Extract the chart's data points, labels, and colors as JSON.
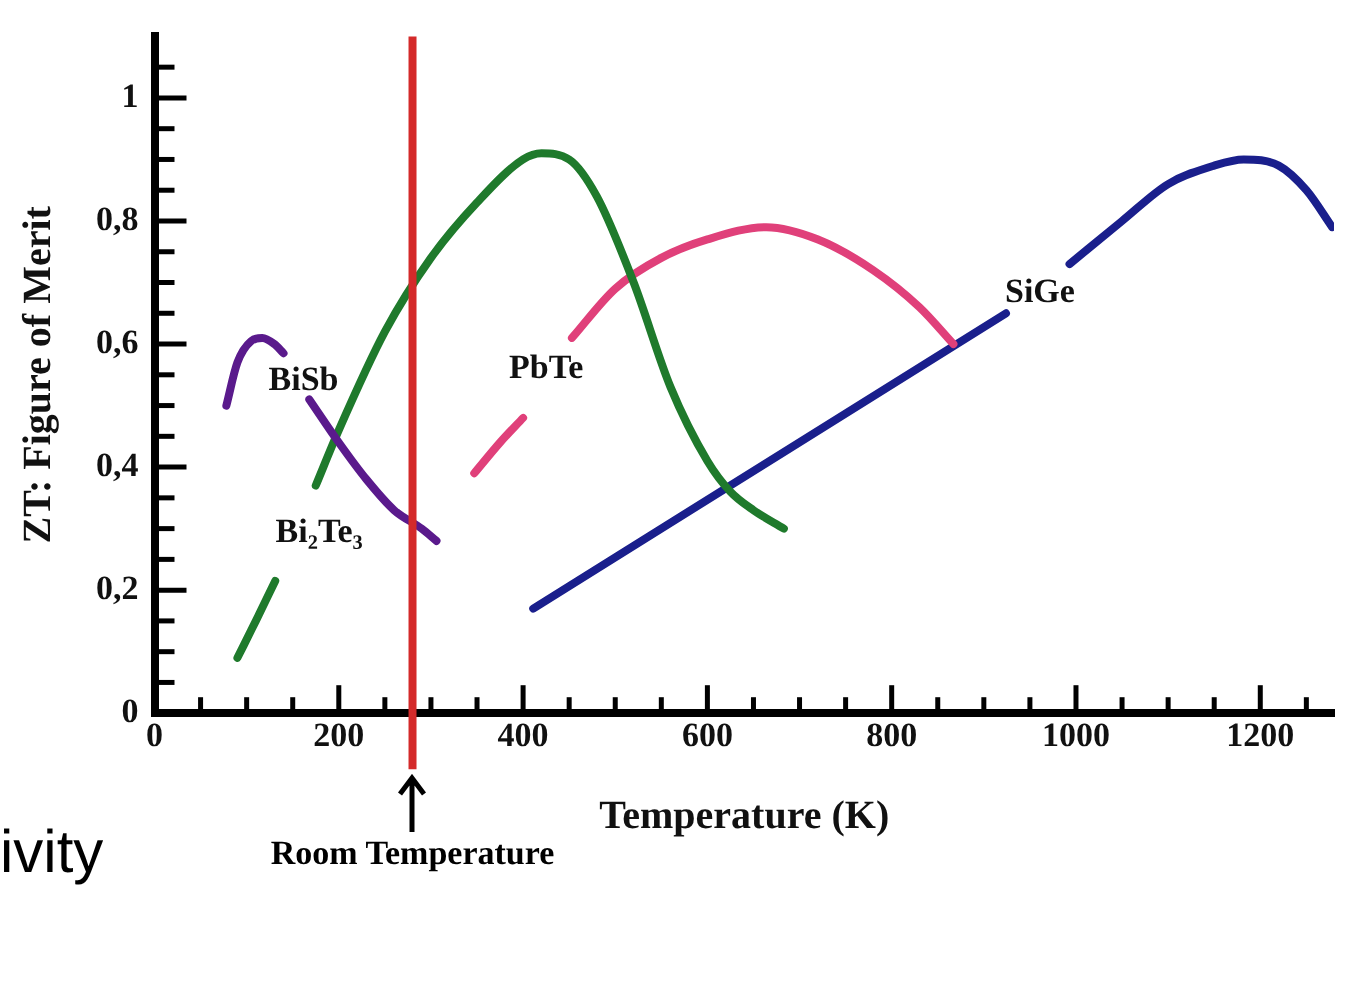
{
  "chart_data": {
    "type": "line",
    "xlabel": "Temperature (K)",
    "ylabel": "ZT: Figure of Merit",
    "xlim": [
      0,
      1280
    ],
    "ylim": [
      0,
      1.1
    ],
    "xticks": [
      0,
      {
        "value": 50,
        "label": null
      },
      {
        "value": 100,
        "label": null
      },
      {
        "value": 150,
        "label": null
      },
      200,
      {
        "value": 250,
        "label": null
      },
      {
        "value": 300,
        "label": null
      },
      {
        "value": 350,
        "label": null
      },
      400,
      {
        "value": 450,
        "label": null
      },
      {
        "value": 500,
        "label": null
      },
      {
        "value": 550,
        "label": null
      },
      600,
      {
        "value": 650,
        "label": null
      },
      {
        "value": 700,
        "label": null
      },
      {
        "value": 750,
        "label": null
      },
      800,
      {
        "value": 850,
        "label": null
      },
      {
        "value": 900,
        "label": null
      },
      {
        "value": 950,
        "label": null
      },
      1000,
      {
        "value": 1050,
        "label": null
      },
      {
        "value": 1100,
        "label": null
      },
      {
        "value": 1150,
        "label": null
      },
      1200,
      {
        "value": 1250,
        "label": null
      }
    ],
    "yticks": [
      0,
      {
        "value": 0.05,
        "label": null
      },
      {
        "value": 0.1,
        "label": null
      },
      {
        "value": 0.15,
        "label": null
      },
      {
        "value": 0.2,
        "label": "0,2"
      },
      {
        "value": 0.25,
        "label": null
      },
      {
        "value": 0.3,
        "label": null
      },
      {
        "value": 0.35,
        "label": null
      },
      {
        "value": 0.4,
        "label": "0,4"
      },
      {
        "value": 0.45,
        "label": null
      },
      {
        "value": 0.5,
        "label": null
      },
      {
        "value": 0.55,
        "label": null
      },
      {
        "value": 0.6,
        "label": "0,6"
      },
      {
        "value": 0.65,
        "label": null
      },
      {
        "value": 0.7,
        "label": null
      },
      {
        "value": 0.75,
        "label": null
      },
      {
        "value": 0.8,
        "label": "0,8"
      },
      {
        "value": 0.85,
        "label": null
      },
      {
        "value": 0.9,
        "label": null
      },
      {
        "value": 0.95,
        "label": null
      },
      1,
      {
        "value": 1.05,
        "label": null
      }
    ],
    "grid": false,
    "legend": false,
    "marker": "none",
    "line_style": "solid",
    "series": [
      {
        "name": "BiSb",
        "color": "#5a1a8c",
        "x": [
          78,
          90,
          105,
          117,
          130,
          140,
          155,
          168,
          200,
          230,
          260,
          290,
          306
        ],
        "values": [
          0.5,
          0.57,
          0.605,
          0.61,
          0.6,
          0.585,
          null,
          0.51,
          0.44,
          0.38,
          0.33,
          0.3,
          0.28
        ]
      },
      {
        "name": "Bi₂Te₃",
        "color": "#1f7a2c",
        "x": [
          90,
          110,
          131,
          150,
          175,
          200,
          250,
          300,
          350,
          400,
          420,
          450,
          480,
          520,
          560,
          600,
          625,
          650,
          683
        ],
        "values": [
          0.09,
          0.15,
          0.215,
          null,
          0.37,
          0.46,
          0.62,
          0.74,
          0.83,
          0.9,
          0.91,
          0.9,
          0.84,
          0.7,
          0.53,
          0.41,
          0.36,
          0.33,
          0.3
        ]
      },
      {
        "name": "PbTe",
        "color": "#e0407a",
        "x": [
          347,
          375,
          400,
          425,
          453,
          500,
          550,
          600,
          664,
          720,
          780,
          830,
          867
        ],
        "values": [
          0.39,
          0.44,
          0.48,
          null,
          0.61,
          0.69,
          0.74,
          0.77,
          0.79,
          0.77,
          0.72,
          0.66,
          0.6
        ]
      },
      {
        "name": "SiGe",
        "color": "#1a1f8c",
        "x": [
          411,
          924,
          960,
          993,
          1050,
          1100,
          1150,
          1182,
          1220,
          1250,
          1278
        ],
        "values": [
          0.17,
          0.65,
          null,
          0.73,
          0.8,
          0.86,
          0.89,
          0.9,
          0.89,
          0.85,
          0.79
        ]
      }
    ],
    "ref_lines": [
      {
        "axis": "x",
        "value": 280,
        "label": "Room Temperature",
        "color": "#d42a2a"
      }
    ],
    "annotations": [
      "ivity"
    ]
  }
}
